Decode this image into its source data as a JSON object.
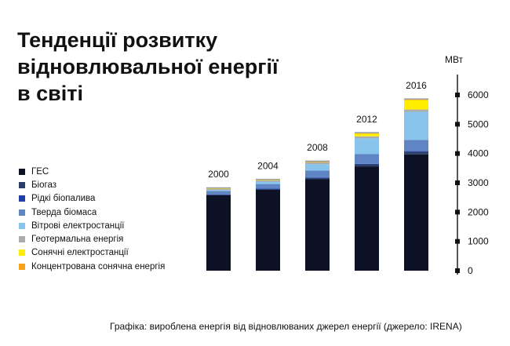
{
  "title_lines": [
    "Тенденції розвитку",
    "відновлювальної енергії",
    "в світі"
  ],
  "caption": "Графіка: вироблена енергія від відновлюваних джерел енергії (джерело: IRENA)",
  "colors": {
    "background": "#ffffff",
    "text": "#111111",
    "axis": "#111111"
  },
  "chart_data": {
    "type": "bar",
    "stacked": true,
    "categories": [
      "2000",
      "2004",
      "2008",
      "2012",
      "2016"
    ],
    "ylabel": "МВт",
    "ylim": [
      0,
      6000
    ],
    "yticks": [
      0,
      1000,
      2000,
      3000,
      4000,
      5000,
      6000
    ],
    "ytick_labels": [
      "0",
      "1000",
      "2000",
      "3000",
      "4000",
      "5000",
      "6000"
    ],
    "axis_position": "right",
    "legend_position": "left",
    "grid": false,
    "series": [
      {
        "name": "ГЕС",
        "color": "#0d1126",
        "values": [
          2580,
          2760,
          3120,
          3560,
          3970
        ]
      },
      {
        "name": "Біогаз",
        "color": "#2b3f69",
        "values": [
          20,
          30,
          45,
          70,
          90
        ]
      },
      {
        "name": "Рідкі біопалива",
        "color": "#1f3fa8",
        "values": [
          5,
          8,
          12,
          18,
          22
        ]
      },
      {
        "name": "Тверда біомаса",
        "color": "#5f85c4",
        "values": [
          120,
          160,
          240,
          330,
          380
        ]
      },
      {
        "name": "Вітрові електростанції",
        "color": "#89c4ec",
        "values": [
          30,
          80,
          220,
          540,
          960
        ]
      },
      {
        "name": "Геотермальна енергія",
        "color": "#ababab",
        "values": [
          50,
          55,
          65,
          70,
          80
        ]
      },
      {
        "name": "Сонячні електростанції",
        "color": "#ffee00",
        "values": [
          1,
          3,
          15,
          100,
          330
        ]
      },
      {
        "name": "Концентрована сонячна енергія",
        "color": "#f5a21c",
        "values": [
          0,
          0,
          1,
          5,
          10
        ]
      }
    ]
  }
}
